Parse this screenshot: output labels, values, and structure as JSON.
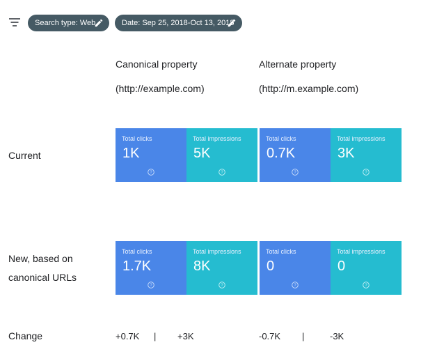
{
  "filters": {
    "search_type": "Search type: Web",
    "date_range": "Date: Sep 25, 2018-Oct 13, 2018"
  },
  "columns": {
    "canonical": {
      "title": "Canonical property",
      "url": "(http://example.com)"
    },
    "alternate": {
      "title": "Alternate property",
      "url": "(http://m.example.com)"
    }
  },
  "rows": {
    "current_label": "Current",
    "new_label_line1": "New, based on",
    "new_label_line2": "canonical URLs",
    "change_label": "Change"
  },
  "metric_labels": {
    "clicks": "Total clicks",
    "impressions": "Total impressions"
  },
  "current": {
    "canonical": {
      "clicks": "1K",
      "impressions": "5K"
    },
    "alternate": {
      "clicks": "0.7K",
      "impressions": "3K"
    }
  },
  "new": {
    "canonical": {
      "clicks": "1.7K",
      "impressions": "8K"
    },
    "alternate": {
      "clicks": "0",
      "impressions": "0"
    }
  },
  "change": {
    "canonical": {
      "clicks": "+0.7K",
      "separator": "|",
      "impressions": "+3K"
    },
    "alternate": {
      "clicks": "-0.7K",
      "separator": "|",
      "impressions": "-3K"
    }
  },
  "colors": {
    "clicks_tile": "#4a86e8",
    "impressions_tile": "#25bcd0",
    "chip": "#455a64"
  },
  "icons": {
    "filter": "filter-icon",
    "edit": "pencil-icon",
    "help": "help-circle-icon"
  }
}
